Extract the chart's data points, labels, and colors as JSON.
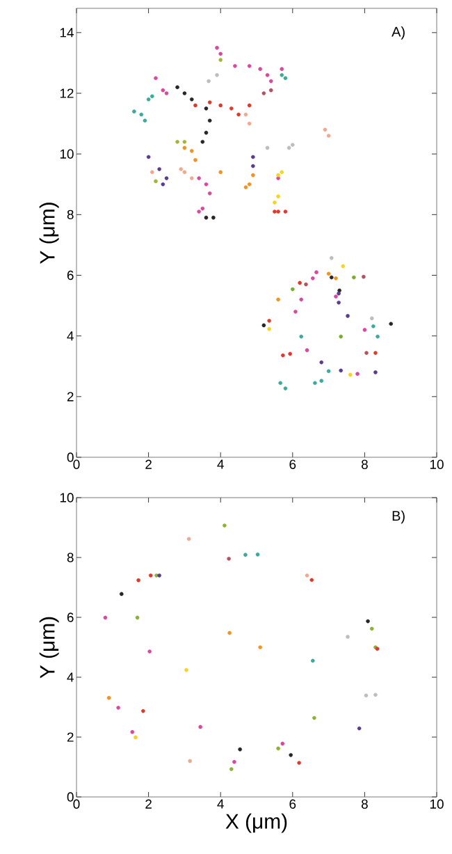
{
  "chart_data": [
    {
      "type": "scatter",
      "ylabel": "Y (μm)",
      "annotations": [
        "A)"
      ],
      "marker": "circle",
      "xlim": [
        0,
        10
      ],
      "ylim": [
        0,
        14.8
      ],
      "xticks": [
        0,
        2,
        4,
        6,
        8,
        10
      ],
      "yticks": [
        0,
        2,
        4,
        6,
        8,
        10,
        12,
        14
      ],
      "series": [
        {
          "color": "#d8489e",
          "x": [
            4.0,
            3.9,
            4.4,
            4.8,
            5.1,
            5.3,
            5.4,
            5.7,
            2.2,
            2.4,
            2.5,
            3.4,
            3.6,
            3.7,
            3.5,
            3.4,
            5.6,
            6.66,
            6.56,
            6.24,
            6.08,
            7.2,
            6.4,
            7.8,
            8.0
          ],
          "values": [
            13.3,
            13.5,
            12.9,
            12.9,
            12.8,
            12.6,
            12.4,
            12.8,
            12.5,
            12.1,
            12.0,
            9.2,
            9.0,
            8.7,
            8.2,
            8.1,
            9.2,
            6.1,
            5.9,
            5.2,
            4.8,
            5.3,
            3.53,
            2.75,
            4.2
          ]
        },
        {
          "color": "#3aaa9c",
          "x": [
            5.8,
            5.7,
            1.6,
            1.8,
            1.9,
            2.0,
            2.1,
            8.24,
            8.36,
            6.24,
            6.8,
            6.62,
            7.0,
            5.66,
            5.8
          ],
          "values": [
            12.5,
            12.6,
            11.4,
            11.3,
            11.1,
            11.8,
            11.9,
            4.32,
            3.98,
            3.98,
            2.52,
            2.45,
            2.84,
            2.45,
            2.27
          ]
        },
        {
          "color": "#2a2424",
          "x": [
            2.8,
            3.0,
            3.2,
            3.6,
            3.7,
            3.6,
            3.5,
            3.6,
            3.8,
            7.08,
            5.2,
            8.73,
            7.3
          ],
          "values": [
            12.2,
            12.0,
            11.8,
            11.5,
            11.1,
            10.7,
            10.4,
            7.9,
            7.9,
            5.93,
            4.35,
            4.4,
            5.5
          ]
        },
        {
          "color": "#e0392b",
          "x": [
            3.3,
            3.7,
            4.0,
            4.3,
            4.5,
            4.8,
            5.5,
            5.6,
            5.8,
            5.35,
            5.93,
            5.73,
            8.3,
            6.2
          ],
          "values": [
            11.6,
            11.7,
            11.6,
            11.5,
            11.3,
            11.6,
            8.1,
            8.1,
            8.1,
            4.5,
            3.41,
            3.36,
            3.44,
            5.75
          ]
        },
        {
          "color": "#f3921c",
          "x": [
            3.0,
            3.2,
            3.3,
            4.0,
            4.8,
            4.9,
            4.7,
            5.6,
            7.0,
            7.2
          ],
          "values": [
            10.2,
            10.1,
            9.8,
            9.4,
            9.0,
            9.3,
            8.9,
            5.2,
            6.05,
            5.9
          ]
        },
        {
          "color": "#5a3b8e",
          "x": [
            2.0,
            2.3,
            2.5,
            2.4,
            4.9,
            4.9,
            7.28,
            7.28,
            7.53,
            6.8,
            7.34,
            8.3
          ],
          "values": [
            9.9,
            9.5,
            9.2,
            9.0,
            9.9,
            9.6,
            5.4,
            5.1,
            4.66,
            3.13,
            2.86,
            2.8
          ]
        },
        {
          "color": "#f0a88e",
          "x": [
            4.7,
            4.8,
            6.9,
            7.0,
            2.1,
            2.9,
            3.0,
            3.2
          ],
          "values": [
            11.3,
            11.0,
            10.8,
            10.6,
            9.4,
            9.5,
            9.4,
            9.2
          ]
        },
        {
          "color": "#bdbdbd",
          "x": [
            3.67,
            3.9,
            5.3,
            5.9,
            6.0,
            7.08,
            8.2
          ],
          "values": [
            12.4,
            12.6,
            10.2,
            10.2,
            10.3,
            6.57,
            4.58
          ]
        },
        {
          "color": "#a6b52e",
          "x": [
            4.0,
            2.8,
            3.0,
            2.2
          ],
          "values": [
            13.1,
            10.4,
            10.4,
            9.1
          ]
        },
        {
          "color": "#7aac2e",
          "x": [
            6.0,
            7.7,
            7.34
          ],
          "values": [
            5.54,
            5.93,
            3.98
          ]
        },
        {
          "color": "#f7d322",
          "x": [
            5.6,
            5.7,
            5.6,
            5.5,
            7.4,
            5.35,
            7.6
          ],
          "values": [
            9.3,
            9.4,
            8.6,
            8.4,
            6.3,
            4.23,
            2.72
          ]
        },
        {
          "color": "#b3525e",
          "x": [
            5.2,
            5.4,
            6.37,
            7.97,
            8.05
          ],
          "values": [
            12.0,
            12.1,
            5.7,
            5.95,
            3.44
          ]
        }
      ]
    },
    {
      "type": "scatter",
      "xlabel": "X (μm)",
      "ylabel": "Y (μm)",
      "annotations": [
        "B)"
      ],
      "marker": "circle",
      "xlim": [
        0,
        10
      ],
      "ylim": [
        0,
        10
      ],
      "xticks": [
        0,
        2,
        4,
        6,
        8,
        10
      ],
      "yticks": [
        0,
        2,
        4,
        6,
        8,
        10
      ],
      "series": [
        {
          "color": "#8ab233",
          "x": [
            4.11,
            2.22,
            1.69,
            8.2,
            8.3,
            6.6,
            5.6,
            4.3
          ],
          "values": [
            9.07,
            7.4,
            5.99,
            5.62,
            5.0,
            2.64,
            1.62,
            0.93
          ]
        },
        {
          "color": "#f0a88e",
          "x": [
            3.12,
            3.15,
            6.4
          ],
          "values": [
            8.62,
            1.2,
            7.4
          ]
        },
        {
          "color": "#b3525e",
          "x": [
            4.23
          ],
          "values": [
            7.96
          ]
        },
        {
          "color": "#3aaa9c",
          "x": [
            4.69,
            5.03,
            6.56
          ],
          "values": [
            8.09,
            8.1,
            4.55
          ]
        },
        {
          "color": "#e0392b",
          "x": [
            2.06,
            1.72,
            6.53,
            1.85,
            6.18,
            8.35
          ],
          "values": [
            7.4,
            7.24,
            7.25,
            2.87,
            1.14,
            4.95
          ]
        },
        {
          "color": "#2a2424",
          "x": [
            1.25,
            8.09,
            4.54,
            5.95
          ],
          "values": [
            6.78,
            5.87,
            1.59,
            1.4
          ]
        },
        {
          "color": "#d8489e",
          "x": [
            0.8,
            2.03,
            1.16,
            3.44,
            1.55,
            4.38,
            5.72
          ],
          "values": [
            5.99,
            4.86,
            2.98,
            2.34,
            2.17,
            1.17,
            1.78
          ]
        },
        {
          "color": "#f3921c",
          "x": [
            4.25,
            5.1,
            0.9
          ],
          "values": [
            5.48,
            5.0,
            3.31
          ]
        },
        {
          "color": "#f7d322",
          "x": [
            3.05,
            1.64
          ],
          "values": [
            4.24,
            1.99
          ]
        },
        {
          "color": "#bdbdbd",
          "x": [
            7.53,
            8.3,
            8.04
          ],
          "values": [
            5.35,
            3.41,
            3.39
          ]
        },
        {
          "color": "#5a3b8e",
          "x": [
            7.85,
            2.3
          ],
          "values": [
            2.29,
            7.4
          ]
        }
      ]
    }
  ]
}
